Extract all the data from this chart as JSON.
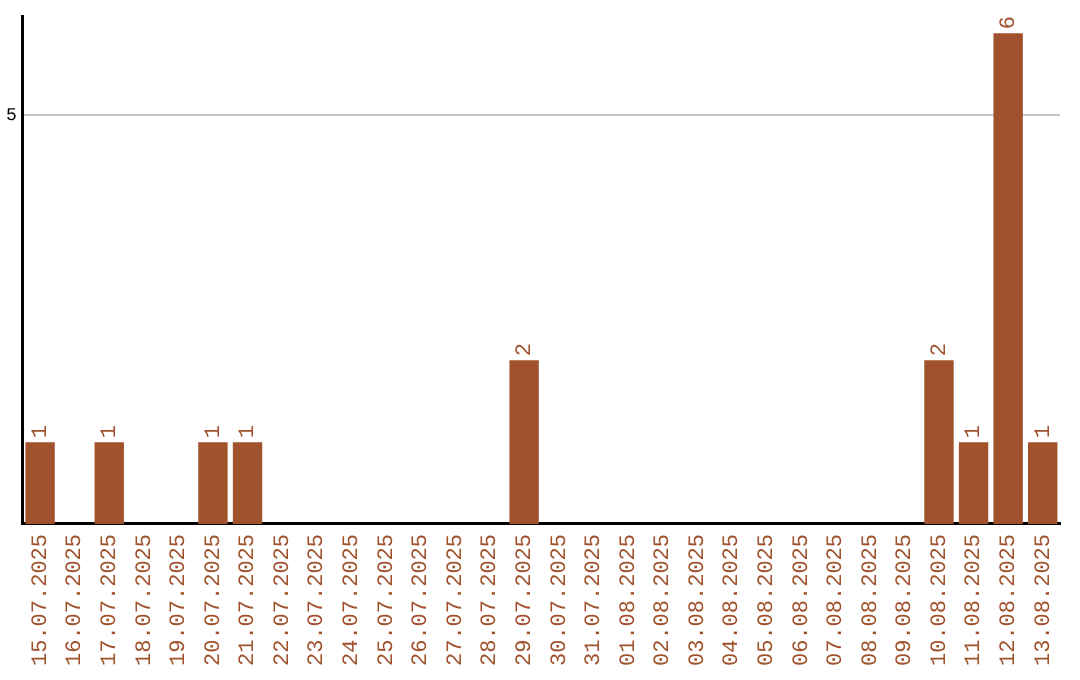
{
  "chart_data": {
    "type": "bar",
    "categories": [
      "15.07.2025",
      "16.07.2025",
      "17.07.2025",
      "18.07.2025",
      "19.07.2025",
      "20.07.2025",
      "21.07.2025",
      "22.07.2025",
      "23.07.2025",
      "24.07.2025",
      "25.07.2025",
      "26.07.2025",
      "27.07.2025",
      "28.07.2025",
      "29.07.2025",
      "30.07.2025",
      "31.07.2025",
      "01.08.2025",
      "02.08.2025",
      "03.08.2025",
      "04.08.2025",
      "05.08.2025",
      "06.08.2025",
      "07.08.2025",
      "08.08.2025",
      "09.08.2025",
      "10.08.2025",
      "11.08.2025",
      "12.08.2025",
      "13.08.2025"
    ],
    "values": [
      1,
      0,
      1,
      0,
      0,
      1,
      1,
      0,
      0,
      0,
      0,
      0,
      0,
      0,
      2,
      0,
      0,
      0,
      0,
      0,
      0,
      0,
      0,
      0,
      0,
      0,
      2,
      1,
      6,
      1
    ],
    "value_labels": [
      "1",
      null,
      "1",
      null,
      null,
      "1",
      "1",
      null,
      null,
      null,
      null,
      null,
      null,
      null,
      "2",
      null,
      null,
      null,
      null,
      null,
      null,
      null,
      null,
      null,
      null,
      null,
      "2",
      "1",
      "6",
      "1"
    ],
    "color": "#a0522d",
    "ylim": [
      0,
      6.2
    ],
    "yticks": [
      5
    ],
    "grid": "y"
  }
}
